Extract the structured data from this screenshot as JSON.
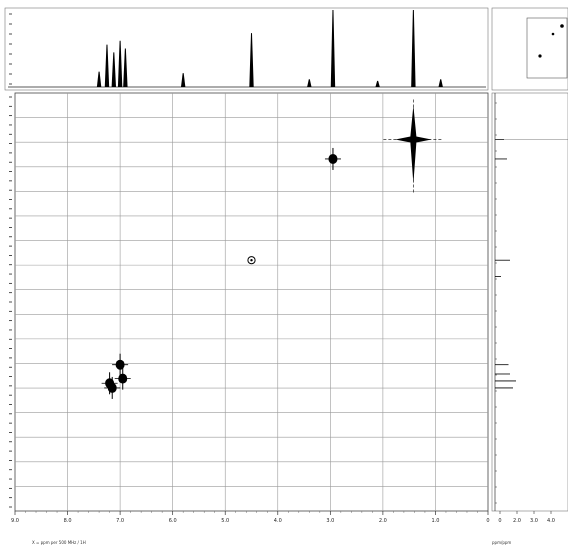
{
  "chart_data": {
    "type": "scatter",
    "subtype": "2D NMR correlation spectrum",
    "x_axis": {
      "tick_labels": [
        "9.0",
        "8.0",
        "7.0",
        "6.0",
        "5.0",
        "4.0",
        "3.0",
        "2.0",
        "1.0",
        "0"
      ],
      "range": [
        9.0,
        0.0
      ]
    },
    "y_axis": {
      "range": [
        0.0,
        9.0
      ]
    },
    "grid": true,
    "cross_peaks": [
      {
        "x": 1.42,
        "y": 1.0,
        "intensity": "strong"
      },
      {
        "x": 2.95,
        "y": 1.42,
        "intensity": "medium"
      },
      {
        "x": 4.5,
        "y": 3.6,
        "intensity": "weak"
      },
      {
        "x": 7.0,
        "y": 5.85,
        "intensity": "medium"
      },
      {
        "x": 6.95,
        "y": 6.15,
        "intensity": "medium"
      },
      {
        "x": 7.15,
        "y": 6.35,
        "intensity": "medium"
      },
      {
        "x": 7.2,
        "y": 6.25,
        "intensity": "medium"
      }
    ],
    "top_projection_peaks": [
      {
        "x": 7.4,
        "height": 0.2
      },
      {
        "x": 7.25,
        "height": 0.55
      },
      {
        "x": 7.12,
        "height": 0.45
      },
      {
        "x": 7.0,
        "height": 0.6
      },
      {
        "x": 6.9,
        "height": 0.5
      },
      {
        "x": 5.8,
        "height": 0.18
      },
      {
        "x": 4.5,
        "height": 0.7
      },
      {
        "x": 3.4,
        "height": 0.1
      },
      {
        "x": 2.95,
        "height": 1.0
      },
      {
        "x": 2.1,
        "height": 0.08
      },
      {
        "x": 1.42,
        "height": 1.0
      },
      {
        "x": 0.9,
        "height": 0.1
      }
    ],
    "right_projection_peaks": [
      {
        "y": 1.0,
        "height": 0.3
      },
      {
        "y": 1.42,
        "height": 0.4
      },
      {
        "y": 3.6,
        "height": 0.5
      },
      {
        "y": 3.95,
        "height": 0.2
      },
      {
        "y": 5.85,
        "height": 0.45
      },
      {
        "y": 6.05,
        "height": 0.5
      },
      {
        "y": 6.2,
        "height": 0.7
      },
      {
        "y": 6.35,
        "height": 0.6
      }
    ],
    "right_axis_tick_labels": [
      "0",
      "2.0",
      "3.0",
      "4.0"
    ]
  },
  "footer": {
    "left_caption": "X = ppm per 500 MHz / 1H",
    "right_caption": "ppm/ppm"
  }
}
